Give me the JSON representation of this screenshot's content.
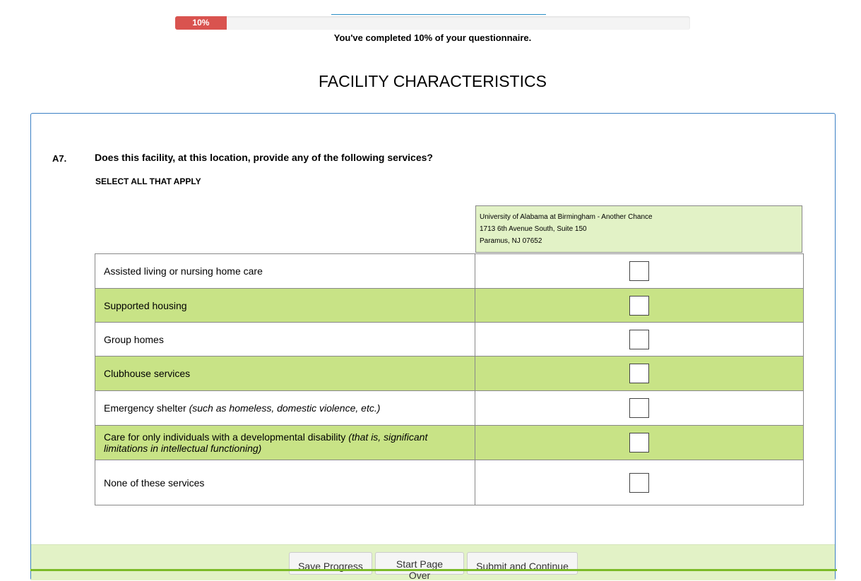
{
  "progress": {
    "percent": 10,
    "label": "10%",
    "text": "You've completed 10% of your questionnaire.",
    "color": "#d9534f"
  },
  "section_title": "FACILITY CHARACTERISTICS",
  "question": {
    "number": "A7.",
    "text": "Does this facility, at this location, provide any of the following services?",
    "instruction": "SELECT ALL THAT APPLY"
  },
  "facility": {
    "name": "University of Alabama at Birmingham - Another Chance",
    "address1": "1713 6th Avenue South, Suite 150",
    "address2": "Paramus, NJ 07652"
  },
  "rows": [
    {
      "label": "Assisted living or nursing home care",
      "note": "",
      "checked": false
    },
    {
      "label": "Supported housing",
      "note": "",
      "checked": false
    },
    {
      "label": "Group homes",
      "note": "",
      "checked": false
    },
    {
      "label": "Clubhouse services",
      "note": "",
      "checked": false
    },
    {
      "label": "Emergency shelter ",
      "note": "(such as homeless, domestic violence, etc.)",
      "checked": false
    },
    {
      "label": "Care for only individuals with a developmental disability ",
      "note": "(that is, significant limitations in intellectual functioning)",
      "checked": false
    },
    {
      "label": "None of these services",
      "note": "",
      "checked": false
    }
  ],
  "buttons": {
    "save": "Save Progress",
    "start_over": "Start Page Over",
    "submit": "Submit and Continue"
  }
}
